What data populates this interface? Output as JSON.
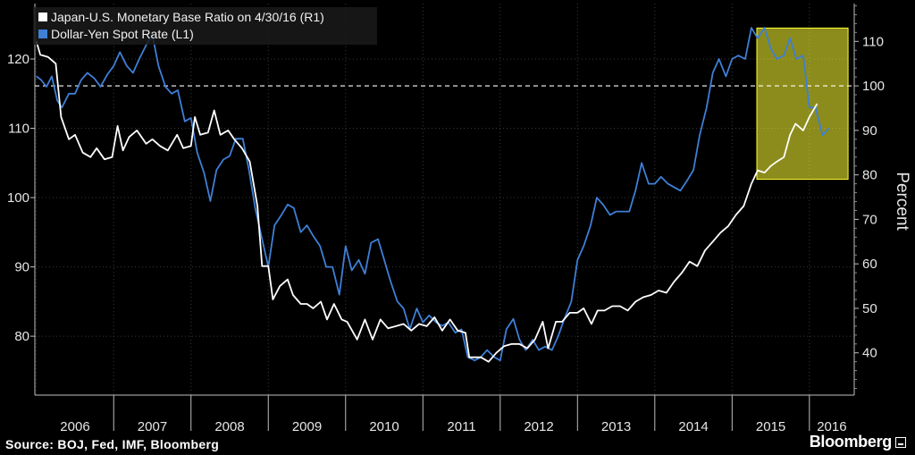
{
  "chart_data": {
    "type": "line",
    "legend_placement": "top-left",
    "grid": true,
    "x_labels": [
      "2006",
      "2007",
      "2008",
      "2009",
      "2010",
      "2011",
      "2012",
      "2013",
      "2014",
      "2015",
      "2016"
    ],
    "xlim": [
      2005.98,
      2016.58
    ],
    "left_axis": {
      "ticks": [
        80,
        90,
        100,
        110,
        120
      ],
      "ylim": [
        71.5,
        128
      ]
    },
    "right_axis": {
      "label": "Percent",
      "ticks": [
        40,
        50,
        60,
        70,
        80,
        90,
        100,
        110
      ],
      "ylim": [
        30.5,
        118.5
      ],
      "reference_line": 100
    },
    "highlight": {
      "x_start": 2015.32,
      "x_end": 2016.5,
      "y_right_start": 79,
      "y_right_end": 113,
      "color": "#ffff33"
    },
    "series": [
      {
        "name": "Japan-U.S. Monetary Base Ratio on 4/30/16 (R1)",
        "axis": "right",
        "color": "#ffffff",
        "points": [
          [
            2006.0,
            110
          ],
          [
            2006.05,
            107
          ],
          [
            2006.15,
            106.5
          ],
          [
            2006.25,
            105
          ],
          [
            2006.32,
            93
          ],
          [
            2006.42,
            88
          ],
          [
            2006.5,
            89
          ],
          [
            2006.6,
            85
          ],
          [
            2006.7,
            84
          ],
          [
            2006.78,
            86
          ],
          [
            2006.88,
            83.5
          ],
          [
            2006.98,
            84
          ],
          [
            2007.05,
            91
          ],
          [
            2007.12,
            85.5
          ],
          [
            2007.2,
            88.5
          ],
          [
            2007.3,
            90
          ],
          [
            2007.42,
            87
          ],
          [
            2007.5,
            88
          ],
          [
            2007.6,
            86.5
          ],
          [
            2007.7,
            85.5
          ],
          [
            2007.82,
            89
          ],
          [
            2007.9,
            86
          ],
          [
            2008.0,
            86.5
          ],
          [
            2008.05,
            93
          ],
          [
            2008.12,
            89
          ],
          [
            2008.22,
            89.5
          ],
          [
            2008.3,
            94.5
          ],
          [
            2008.38,
            89
          ],
          [
            2008.48,
            90
          ],
          [
            2008.56,
            88
          ],
          [
            2008.66,
            86
          ],
          [
            2008.76,
            83
          ],
          [
            2008.86,
            73
          ],
          [
            2008.92,
            59.5
          ],
          [
            2009.0,
            59.5
          ],
          [
            2009.06,
            52
          ],
          [
            2009.15,
            55
          ],
          [
            2009.25,
            56.5
          ],
          [
            2009.32,
            53
          ],
          [
            2009.42,
            51
          ],
          [
            2009.5,
            51
          ],
          [
            2009.58,
            50
          ],
          [
            2009.68,
            51.5
          ],
          [
            2009.76,
            47.5
          ],
          [
            2009.85,
            51
          ],
          [
            2009.95,
            47.5
          ],
          [
            2010.02,
            47
          ],
          [
            2010.15,
            43
          ],
          [
            2010.25,
            47.5
          ],
          [
            2010.35,
            43
          ],
          [
            2010.45,
            47.5
          ],
          [
            2010.55,
            45.5
          ],
          [
            2010.65,
            46
          ],
          [
            2010.75,
            46.5
          ],
          [
            2010.85,
            45
          ],
          [
            2010.95,
            46.5
          ],
          [
            2011.05,
            46
          ],
          [
            2011.15,
            48
          ],
          [
            2011.25,
            45
          ],
          [
            2011.35,
            47.5
          ],
          [
            2011.45,
            45
          ],
          [
            2011.55,
            44.5
          ],
          [
            2011.6,
            39
          ],
          [
            2011.75,
            39
          ],
          [
            2011.85,
            38
          ],
          [
            2011.95,
            40
          ],
          [
            2012.05,
            41.5
          ],
          [
            2012.15,
            42
          ],
          [
            2012.25,
            42
          ],
          [
            2012.35,
            41
          ],
          [
            2012.45,
            43
          ],
          [
            2012.55,
            47
          ],
          [
            2012.62,
            41
          ],
          [
            2012.72,
            47
          ],
          [
            2012.8,
            47
          ],
          [
            2012.9,
            49
          ],
          [
            2013.0,
            49
          ],
          [
            2013.08,
            50
          ],
          [
            2013.18,
            46.5
          ],
          [
            2013.26,
            49.5
          ],
          [
            2013.35,
            49.5
          ],
          [
            2013.45,
            50.5
          ],
          [
            2013.55,
            50.5
          ],
          [
            2013.65,
            49.5
          ],
          [
            2013.75,
            51.5
          ],
          [
            2013.85,
            52.5
          ],
          [
            2013.95,
            53
          ],
          [
            2014.05,
            54
          ],
          [
            2014.15,
            53.5
          ],
          [
            2014.25,
            56
          ],
          [
            2014.35,
            58
          ],
          [
            2014.45,
            60.5
          ],
          [
            2014.55,
            59.5
          ],
          [
            2014.65,
            63
          ],
          [
            2014.75,
            65
          ],
          [
            2014.85,
            67
          ],
          [
            2014.95,
            68.5
          ],
          [
            2015.05,
            71
          ],
          [
            2015.15,
            73
          ],
          [
            2015.25,
            78
          ],
          [
            2015.33,
            81
          ],
          [
            2015.42,
            80.5
          ],
          [
            2015.5,
            82
          ],
          [
            2015.58,
            83
          ],
          [
            2015.67,
            84
          ],
          [
            2015.75,
            89
          ],
          [
            2015.82,
            91.5
          ],
          [
            2015.92,
            90
          ],
          [
            2016.0,
            93
          ],
          [
            2016.1,
            96
          ]
        ]
      },
      {
        "name": "Dollar-Yen Spot Rate (L1)",
        "axis": "left",
        "color": "#3f7fd6",
        "points": [
          [
            2006.0,
            117.5
          ],
          [
            2006.06,
            117
          ],
          [
            2006.13,
            116
          ],
          [
            2006.2,
            117.5
          ],
          [
            2006.27,
            114
          ],
          [
            2006.33,
            113
          ],
          [
            2006.42,
            115
          ],
          [
            2006.5,
            115
          ],
          [
            2006.58,
            117
          ],
          [
            2006.66,
            118
          ],
          [
            2006.75,
            117.2
          ],
          [
            2006.83,
            116
          ],
          [
            2006.92,
            117.8
          ],
          [
            2007.0,
            119
          ],
          [
            2007.08,
            121
          ],
          [
            2007.17,
            119
          ],
          [
            2007.25,
            118
          ],
          [
            2007.33,
            120
          ],
          [
            2007.42,
            122
          ],
          [
            2007.5,
            123.5
          ],
          [
            2007.58,
            119
          ],
          [
            2007.67,
            116
          ],
          [
            2007.75,
            115
          ],
          [
            2007.83,
            115.5
          ],
          [
            2007.92,
            111
          ],
          [
            2008.0,
            111.5
          ],
          [
            2008.08,
            106.5
          ],
          [
            2008.17,
            103.5
          ],
          [
            2008.25,
            99.5
          ],
          [
            2008.33,
            104
          ],
          [
            2008.42,
            105.5
          ],
          [
            2008.5,
            106
          ],
          [
            2008.58,
            108.5
          ],
          [
            2008.67,
            108.5
          ],
          [
            2008.75,
            104
          ],
          [
            2008.83,
            98.5
          ],
          [
            2008.92,
            94
          ],
          [
            2009.0,
            90
          ],
          [
            2009.08,
            96
          ],
          [
            2009.17,
            97.5
          ],
          [
            2009.25,
            99
          ],
          [
            2009.33,
            98.5
          ],
          [
            2009.42,
            95
          ],
          [
            2009.5,
            96
          ],
          [
            2009.58,
            94.5
          ],
          [
            2009.67,
            93
          ],
          [
            2009.75,
            90
          ],
          [
            2009.83,
            90
          ],
          [
            2009.92,
            86
          ],
          [
            2010.0,
            93
          ],
          [
            2010.08,
            89.5
          ],
          [
            2010.17,
            91
          ],
          [
            2010.25,
            89
          ],
          [
            2010.33,
            93.5
          ],
          [
            2010.42,
            94
          ],
          [
            2010.5,
            91
          ],
          [
            2010.58,
            88
          ],
          [
            2010.67,
            85
          ],
          [
            2010.75,
            84
          ],
          [
            2010.83,
            81
          ],
          [
            2010.92,
            84
          ],
          [
            2011.0,
            82
          ],
          [
            2011.08,
            83
          ],
          [
            2011.17,
            82
          ],
          [
            2011.25,
            81.5
          ],
          [
            2011.33,
            82
          ],
          [
            2011.42,
            80.5
          ],
          [
            2011.5,
            81
          ],
          [
            2011.58,
            77
          ],
          [
            2011.67,
            76.5
          ],
          [
            2011.75,
            77
          ],
          [
            2011.83,
            78
          ],
          [
            2011.92,
            77
          ],
          [
            2012.0,
            76.5
          ],
          [
            2012.08,
            81
          ],
          [
            2012.17,
            82.5
          ],
          [
            2012.25,
            79.5
          ],
          [
            2012.33,
            78
          ],
          [
            2012.42,
            79.5
          ],
          [
            2012.5,
            78
          ],
          [
            2012.58,
            78.5
          ],
          [
            2012.67,
            78
          ],
          [
            2012.75,
            80
          ],
          [
            2012.83,
            82.5
          ],
          [
            2012.92,
            85
          ],
          [
            2013.0,
            91
          ],
          [
            2013.08,
            93
          ],
          [
            2013.17,
            96
          ],
          [
            2013.25,
            100
          ],
          [
            2013.33,
            99
          ],
          [
            2013.42,
            97.5
          ],
          [
            2013.5,
            98
          ],
          [
            2013.58,
            98
          ],
          [
            2013.67,
            98
          ],
          [
            2013.75,
            101
          ],
          [
            2013.83,
            105
          ],
          [
            2013.92,
            102
          ],
          [
            2014.0,
            102
          ],
          [
            2014.08,
            103
          ],
          [
            2014.17,
            102
          ],
          [
            2014.25,
            101.5
          ],
          [
            2014.33,
            101
          ],
          [
            2014.42,
            102.5
          ],
          [
            2014.5,
            104
          ],
          [
            2014.58,
            109
          ],
          [
            2014.67,
            113
          ],
          [
            2014.75,
            118
          ],
          [
            2014.83,
            120
          ],
          [
            2014.92,
            117.5
          ],
          [
            2015.0,
            120
          ],
          [
            2015.08,
            120.5
          ],
          [
            2015.17,
            120
          ],
          [
            2015.25,
            124.5
          ],
          [
            2015.33,
            123
          ],
          [
            2015.42,
            124.5
          ],
          [
            2015.5,
            121.5
          ],
          [
            2015.58,
            120
          ],
          [
            2015.67,
            120.5
          ],
          [
            2015.75,
            123
          ],
          [
            2015.83,
            120
          ],
          [
            2015.92,
            120.5
          ],
          [
            2016.0,
            113
          ],
          [
            2016.08,
            113
          ],
          [
            2016.17,
            109
          ],
          [
            2016.25,
            110
          ]
        ]
      }
    ]
  },
  "footer": {
    "source": "Source: BOJ, Fed, IMF, Bloomberg",
    "brand": "Bloomberg",
    "brand_icon": "terminal-icon"
  }
}
